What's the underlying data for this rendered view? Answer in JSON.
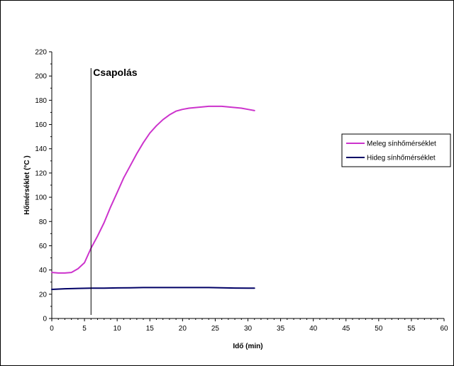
{
  "chart_data": {
    "type": "line",
    "xlabel": "Idő (min)",
    "ylabel": "Hőmérséklet (°C )",
    "xlim": [
      0,
      60
    ],
    "ylim": [
      0,
      220
    ],
    "xticks": [
      0,
      5,
      10,
      15,
      20,
      25,
      30,
      35,
      40,
      45,
      50,
      55,
      60
    ],
    "yticks": [
      0,
      20,
      40,
      60,
      80,
      100,
      120,
      140,
      160,
      180,
      200,
      220
    ],
    "grid": false,
    "legend_position": "right",
    "annotations": [
      {
        "label": "Csapolás",
        "x": 6
      }
    ],
    "series": [
      {
        "name": "Meleg sínhőmérséklet",
        "color": "#cc33cc",
        "x": [
          0,
          1,
          2,
          3,
          4,
          5,
          5.5,
          6,
          7,
          8,
          9,
          10,
          11,
          12,
          13,
          14,
          15,
          16,
          17,
          18,
          19,
          20,
          21,
          22,
          23,
          24,
          25,
          26,
          27,
          28,
          29,
          30,
          31
        ],
        "values": [
          38,
          37.5,
          37.5,
          38,
          41,
          46,
          52,
          58,
          68,
          79,
          92,
          104,
          116,
          126,
          136,
          145,
          153,
          159,
          164,
          168,
          171,
          172.5,
          173.5,
          174,
          174.5,
          175,
          175,
          175,
          174.5,
          174,
          173.5,
          172.5,
          171.5
        ]
      },
      {
        "name": "Hideg sínhőmérséklet",
        "color": "#000066",
        "x": [
          0,
          2,
          4,
          6,
          8,
          10,
          12,
          14,
          16,
          18,
          20,
          22,
          24,
          26,
          28,
          30,
          31
        ],
        "values": [
          24,
          24.5,
          24.8,
          25,
          25,
          25.2,
          25.3,
          25.5,
          25.5,
          25.5,
          25.5,
          25.5,
          25.5,
          25.3,
          25.1,
          25,
          25
        ]
      }
    ]
  }
}
